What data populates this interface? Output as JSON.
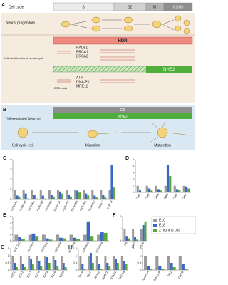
{
  "panel_a": {
    "label": "A",
    "cell_cycle": "Cell cycle",
    "phases": [
      "S",
      "G2",
      "M",
      "G1/G0"
    ],
    "neural_progenitors": "Neural progenitors",
    "dna_repair": "DNA double-strand break repair",
    "hdr": "HDR",
    "hdr_genes": [
      "RAD51",
      "BRCA1",
      "BRCA2"
    ],
    "dsb": "DSB ends",
    "nhej": "NHEJ",
    "nhej_genes": [
      "ATM",
      "DNA-PK",
      "MRE11"
    ]
  },
  "panel_b": {
    "label": "B",
    "g0": "G0",
    "nhej": "NHEJ",
    "neurons": "Differentiated Neurons",
    "steps": [
      "Cell cycle exit",
      "Migration",
      "Maturation"
    ]
  },
  "chart_data": [
    {
      "type": "bar",
      "panel": "C",
      "categories": [
        "cyclin A1",
        "cyclin A2",
        "cyclin B1",
        "cyclin B2",
        "cyclin B3",
        "cyclin D1",
        "cyclin D2",
        "cyclin D3",
        "cyclin E1",
        "cyclin E2",
        "cyclin F",
        "cyclin H"
      ],
      "ylim": [
        0,
        4
      ],
      "yticks": [
        0,
        1,
        2,
        3,
        4
      ],
      "series": [
        {
          "color": "#9a9a9a",
          "values": [
            1,
            1,
            1,
            1,
            1,
            1,
            1,
            1,
            1,
            1,
            1,
            1
          ]
        },
        {
          "color": "#3a68c4",
          "values": [
            0.4,
            0.6,
            0.5,
            0.4,
            0.5,
            0.8,
            0.5,
            0.9,
            0.6,
            0.4,
            0.5,
            3.5
          ]
        },
        {
          "color": "#5aa83a",
          "values": [
            0.3,
            0.1,
            0.1,
            0.1,
            0.3,
            0.6,
            0.3,
            0.7,
            0.4,
            0.2,
            0.2,
            1.2
          ]
        }
      ]
    },
    {
      "type": "bar",
      "panel": "D",
      "categories": [
        "Cdk1",
        "Cdk2",
        "Cdk4",
        "Cdk5",
        "Cdk6",
        "Cdk7"
      ],
      "ylim": [
        0,
        5
      ],
      "yticks": [
        0,
        1,
        2,
        3,
        4,
        5
      ],
      "series": [
        {
          "color": "#9a9a9a",
          "values": [
            1,
            1,
            1,
            1,
            1,
            1
          ]
        },
        {
          "color": "#3a68c4",
          "values": [
            0.3,
            0.6,
            0.5,
            4.2,
            0.5,
            0.9
          ]
        },
        {
          "color": "#5aa83a",
          "values": [
            0.1,
            0.3,
            0.3,
            2.5,
            0.4,
            0.6
          ]
        }
      ]
    },
    {
      "type": "bar",
      "panel": "E",
      "categories": [
        "p21Cip1",
        "p27Kip1",
        "p57Kip2",
        "p16Ink4a",
        "p15Ink4b",
        "p18Ink4c",
        "p19Ink4d"
      ],
      "ylim": [
        0,
        4
      ],
      "yticks": [
        0,
        1,
        2,
        3,
        4
      ],
      "series": [
        {
          "color": "#9a9a9a",
          "values": [
            1,
            1,
            1,
            1,
            1,
            1,
            1
          ]
        },
        {
          "color": "#3a68c4",
          "values": [
            0.6,
            1.2,
            0.4,
            0.5,
            0.5,
            3.2,
            1.4
          ]
        },
        {
          "color": "#5aa83a",
          "values": [
            0.3,
            0.8,
            0.2,
            0.4,
            0.3,
            0.8,
            1.3
          ]
        }
      ]
    },
    {
      "type": "bar",
      "panel": "F",
      "categories": [
        "Rb",
        "p107",
        "p130"
      ],
      "ylim": [
        0,
        2
      ],
      "yticks": [
        0,
        1,
        2
      ],
      "legend": "right",
      "series": [
        {
          "name": "E10",
          "color": "#9a9a9a",
          "values": [
            1,
            1,
            1
          ]
        },
        {
          "name": "E18",
          "color": "#3a68c4",
          "values": [
            0.4,
            0.3,
            1.3
          ]
        },
        {
          "name": "2 months old",
          "color": "#5aa83a",
          "values": [
            0.2,
            0.1,
            1.6
          ]
        }
      ]
    },
    {
      "type": "bar",
      "panel": "G",
      "categories": [
        "E2F1",
        "E2F2",
        "E2F3",
        "E2F4",
        "E2F5",
        "E2F6",
        "E2F8"
      ],
      "ylim": [
        0,
        1.5
      ],
      "yticks": [
        0,
        0.5,
        1,
        1.5
      ],
      "series": [
        {
          "color": "#9a9a9a",
          "values": [
            1,
            1,
            1,
            1,
            1,
            1,
            1
          ]
        },
        {
          "color": "#3a68c4",
          "values": [
            0.5,
            0.4,
            0.8,
            0.6,
            0.9,
            0.7,
            0.5
          ]
        },
        {
          "color": "#5aa83a",
          "values": [
            0.2,
            0.2,
            0.4,
            0.3,
            0.5,
            0.3,
            0.2
          ]
        }
      ]
    },
    {
      "type": "bar",
      "panel": "H",
      "categories": [
        "Cdc6",
        "Cdc7",
        "Mcm2",
        "RAD21",
        "STAG1",
        "SMC1a"
      ],
      "ylim": [
        0,
        1.5
      ],
      "yticks": [
        0,
        0.5,
        1,
        1.5
      ],
      "series": [
        {
          "color": "#9a9a9a",
          "values": [
            1,
            1,
            1,
            1,
            1,
            1
          ]
        },
        {
          "color": "#3a68c4",
          "values": [
            0.4,
            1.2,
            0.4,
            0.5,
            0.8,
            0.6
          ]
        },
        {
          "color": "#5aa83a",
          "values": [
            0.1,
            0.5,
            0.1,
            0.3,
            0.5,
            0.4
          ]
        }
      ]
    },
    {
      "type": "bar",
      "panel": "I",
      "categories": [
        "Aurora A",
        "Aurora B",
        "Plk1",
        "Cdc20"
      ],
      "ylim": [
        0,
        1.5
      ],
      "yticks": [
        0,
        0.5,
        1,
        1.5
      ],
      "series": [
        {
          "color": "#9a9a9a",
          "values": [
            1,
            1,
            1,
            1
          ]
        },
        {
          "color": "#3a68c4",
          "values": [
            0.3,
            0.3,
            0.5,
            0.4
          ]
        },
        {
          "color": "#5aa83a",
          "values": [
            0.1,
            0.05,
            0.2,
            0.1
          ]
        }
      ]
    }
  ]
}
